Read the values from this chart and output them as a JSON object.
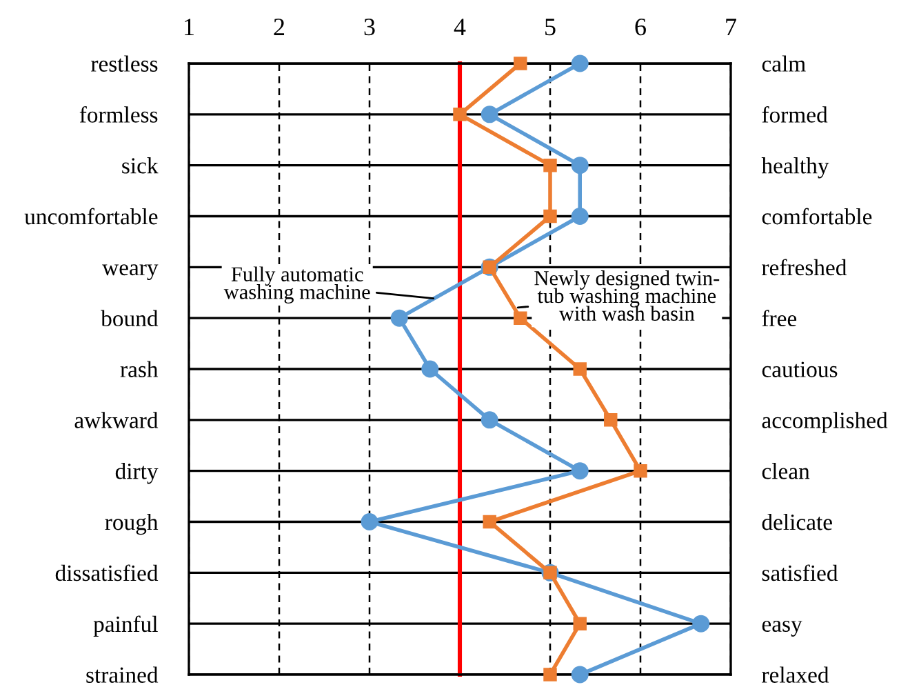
{
  "chart_data": {
    "type": "line",
    "orientation": "horizontal",
    "categories": [
      "restless",
      "formless",
      "sick",
      "uncomfortable",
      "weary",
      "bound",
      "rash",
      "awkward",
      "dirty",
      "rough",
      "dissatisfied",
      "painful",
      "strained"
    ],
    "y2_categories": [
      "calm",
      "formed",
      "healthy",
      "comfortable",
      "refreshed",
      "free",
      "cautious",
      "accomplished",
      "clean",
      "delicate",
      "satisfied",
      "easy",
      "relaxed"
    ],
    "series": [
      {
        "name": "Fully automatic\nwashing machine",
        "color": "#5b9bd5",
        "marker": "circle",
        "values": [
          5.33,
          4.33,
          5.33,
          5.33,
          4.33,
          3.33,
          3.67,
          4.33,
          5.33,
          3,
          5,
          6.67,
          5.33
        ]
      },
      {
        "name": "Newly designed twin-\ntub washing machine\nwith wash basin",
        "color": "#ed7d31",
        "marker": "square",
        "values": [
          4.67,
          4,
          5,
          5,
          4.33,
          4.67,
          5.33,
          5.67,
          6,
          4.33,
          5,
          5.33,
          5
        ]
      }
    ],
    "xlim": [
      1,
      7
    ],
    "xticks": [
      1,
      2,
      3,
      4,
      5,
      6,
      7
    ],
    "grid": true,
    "legend": false,
    "ref_lines": [
      {
        "axis": "x",
        "value": 4,
        "color": "#ff0000"
      }
    ]
  }
}
